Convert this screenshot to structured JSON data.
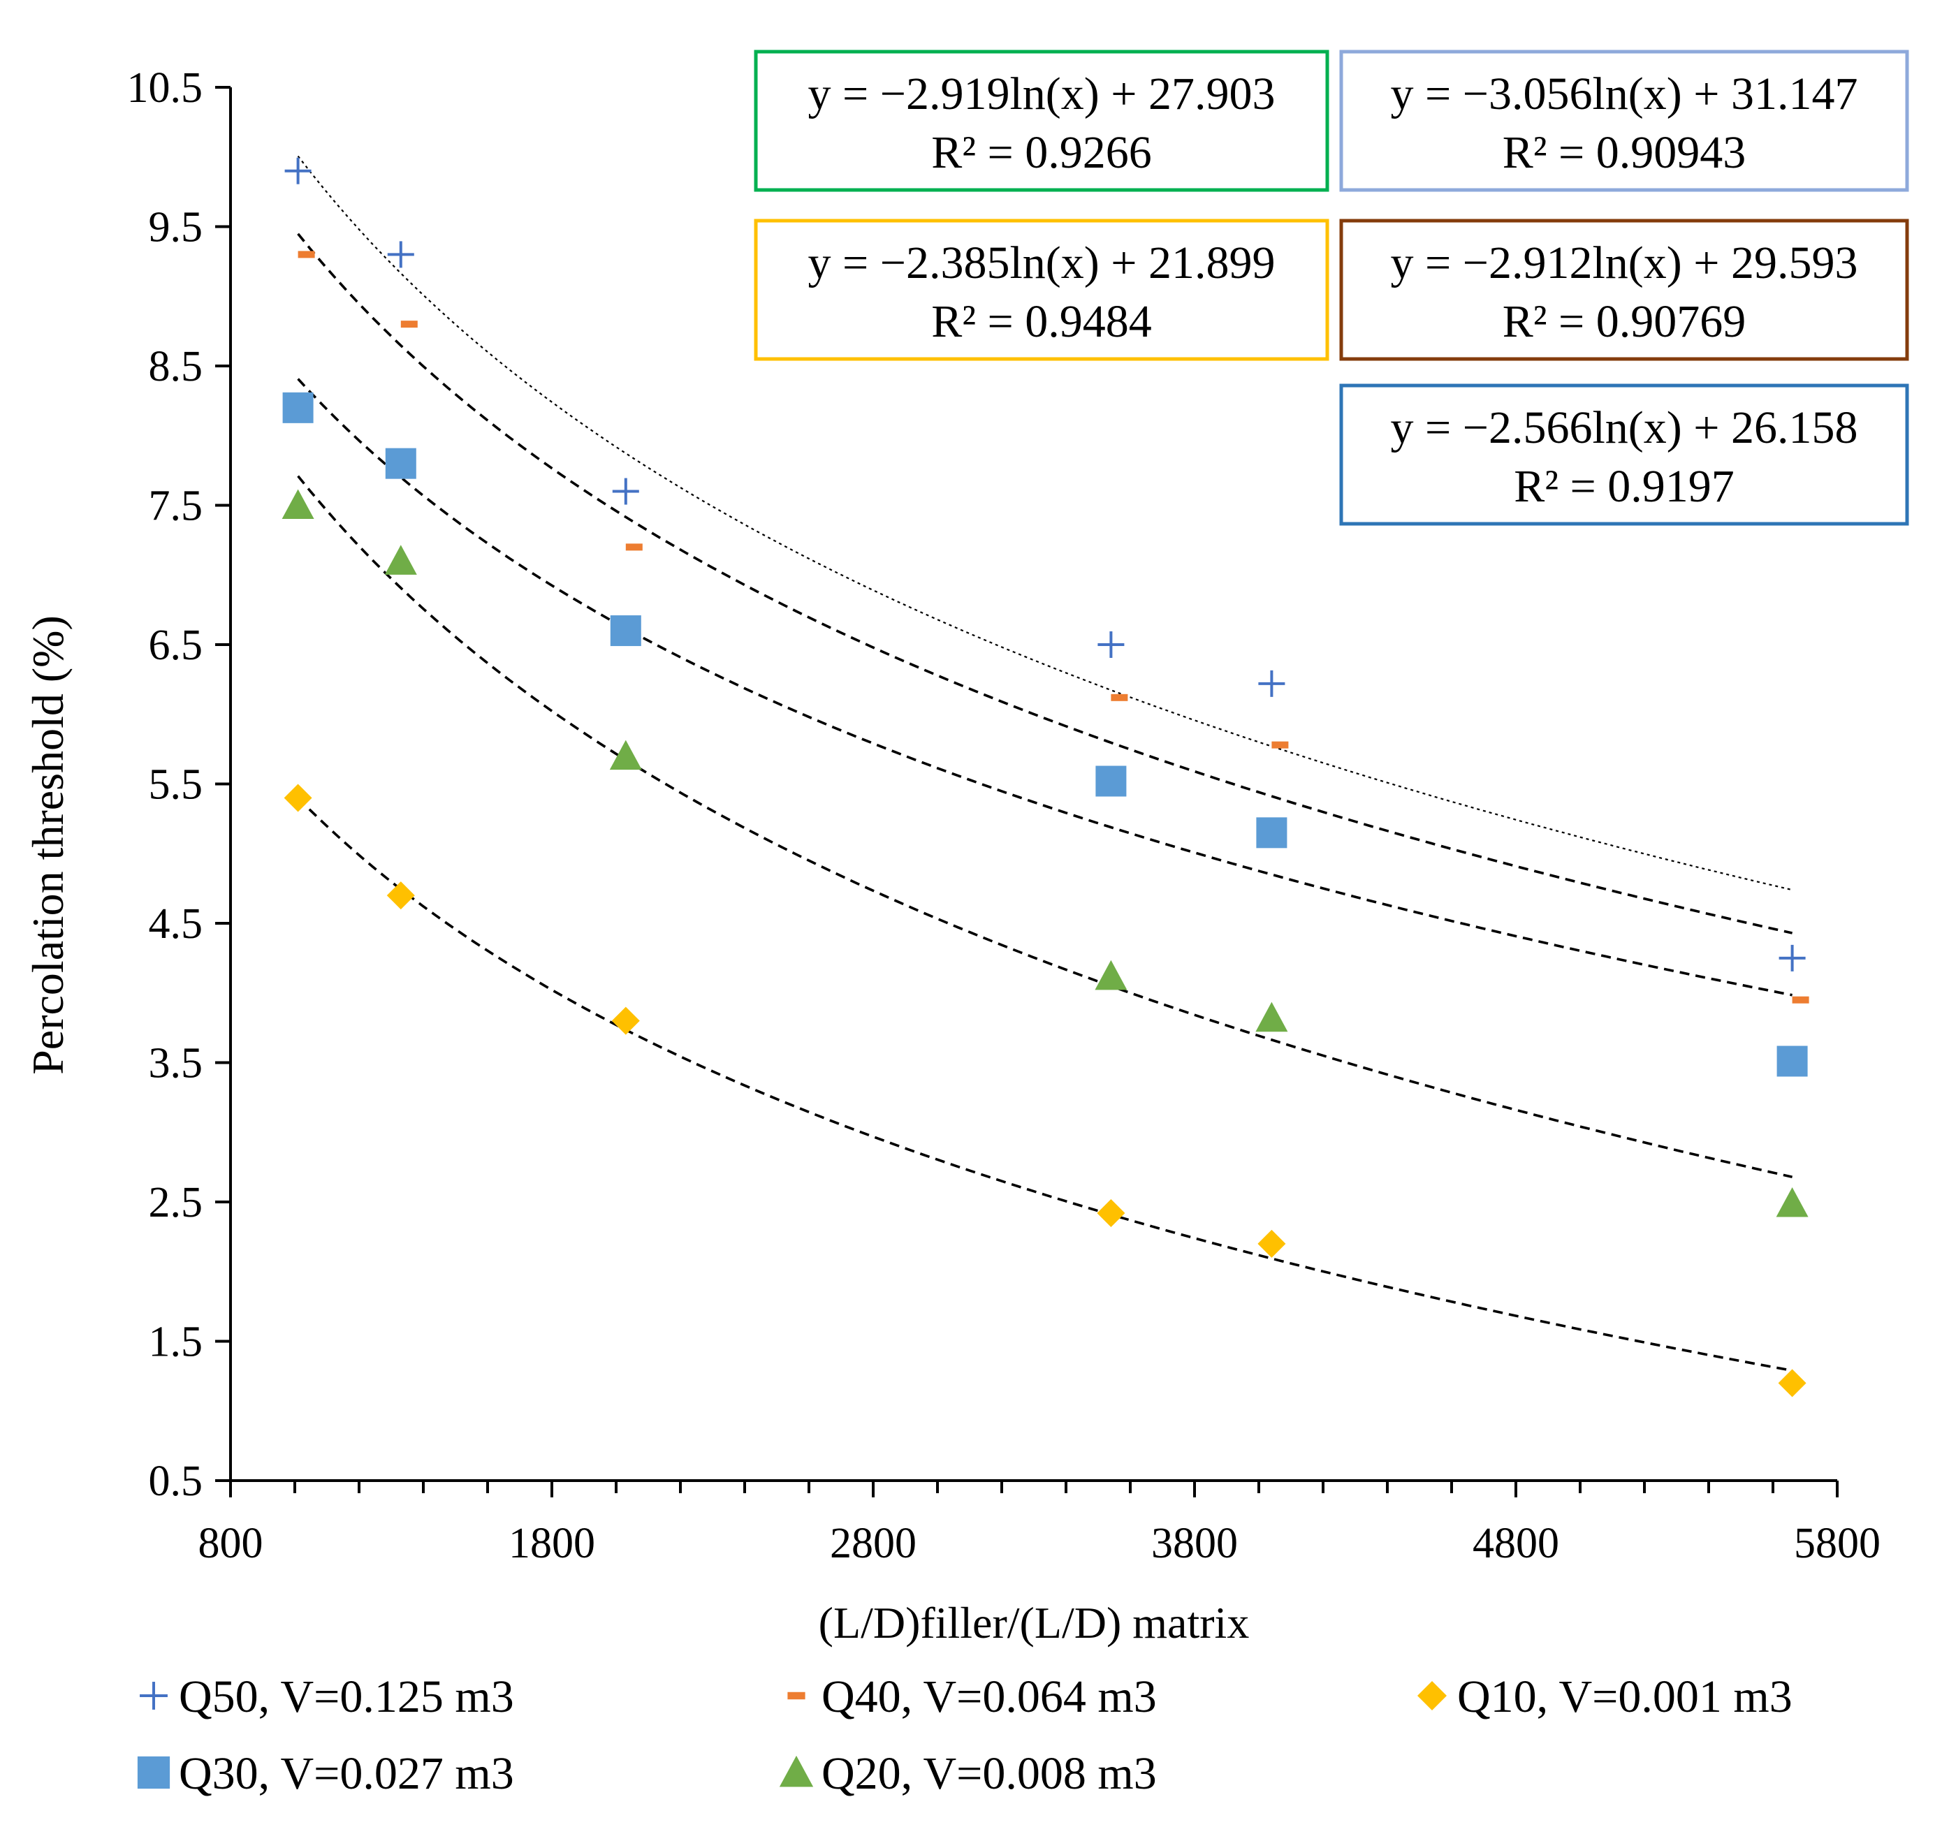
{
  "chart_data": {
    "type": "scatter",
    "title": "",
    "xlabel": "(L/D)filler/(L/D) matrix",
    "ylabel": "Percolation threshold (%)",
    "xlim": [
      800,
      5800
    ],
    "ylim": [
      0.5,
      10.5
    ],
    "x_ticks": [
      "800",
      "1800",
      "2800",
      "3800",
      "4800",
      "5800"
    ],
    "y_ticks": [
      "0.5",
      "1.5",
      "2.5",
      "3.5",
      "4.5",
      "5.5",
      "6.5",
      "7.5",
      "8.5",
      "9.5",
      "10.5"
    ],
    "x": [
      1010,
      1330,
      2030,
      3540,
      4040,
      5660
    ],
    "series": [
      {
        "name": "Q50, V=0.125 m3",
        "marker": "plus",
        "color": "#4472C4",
        "values": [
          9.9,
          9.3,
          7.6,
          6.5,
          6.22,
          4.25
        ]
      },
      {
        "name": "Q40, V=0.064 m3",
        "marker": "dash",
        "color": "#ED7D31",
        "values": [
          9.3,
          8.8,
          7.2,
          6.12,
          5.78,
          3.95
        ]
      },
      {
        "name": "Q10, V=0.001 m3",
        "marker": "diamond",
        "color": "#FFC000",
        "values": [
          5.4,
          4.7,
          3.8,
          2.42,
          2.2,
          1.2
        ]
      },
      {
        "name": "Q30, V=0.027 m3",
        "marker": "square",
        "color": "#5B9BD5",
        "values": [
          8.2,
          7.8,
          6.6,
          5.52,
          5.15,
          3.51
        ]
      },
      {
        "name": "Q20, V=0.008 m3",
        "marker": "triangle",
        "color": "#70AD47",
        "values": [
          7.5,
          7.1,
          5.7,
          4.12,
          3.82,
          2.49
        ]
      }
    ],
    "trendlines": [
      {
        "equation": "y = −2.919ln(x) + 27.903",
        "r2": "R² = 0.9266",
        "a": -2.919,
        "b": 27.903,
        "box_color": "#00B050"
      },
      {
        "equation": "y = −3.056ln(x) + 31.147",
        "r2": "R² = 0.90943",
        "a": -3.056,
        "b": 31.147,
        "box_color": "#8EA9DB"
      },
      {
        "equation": "y = −2.385ln(x) + 21.899",
        "r2": "R² = 0.9484",
        "a": -2.385,
        "b": 21.899,
        "box_color": "#FFC000"
      },
      {
        "equation": "y = −2.912ln(x) + 29.593",
        "r2": "R² = 0.90769",
        "a": -2.912,
        "b": 29.593,
        "box_color": "#843C0C"
      },
      {
        "equation": "y = −2.566ln(x) + 26.158",
        "r2": "R² = 0.9197",
        "a": -2.566,
        "b": 26.158,
        "box_color": "#2E75B6"
      }
    ],
    "trend_x_range": [
      1010,
      5660
    ],
    "legend_position": "bottom",
    "grid": false
  }
}
